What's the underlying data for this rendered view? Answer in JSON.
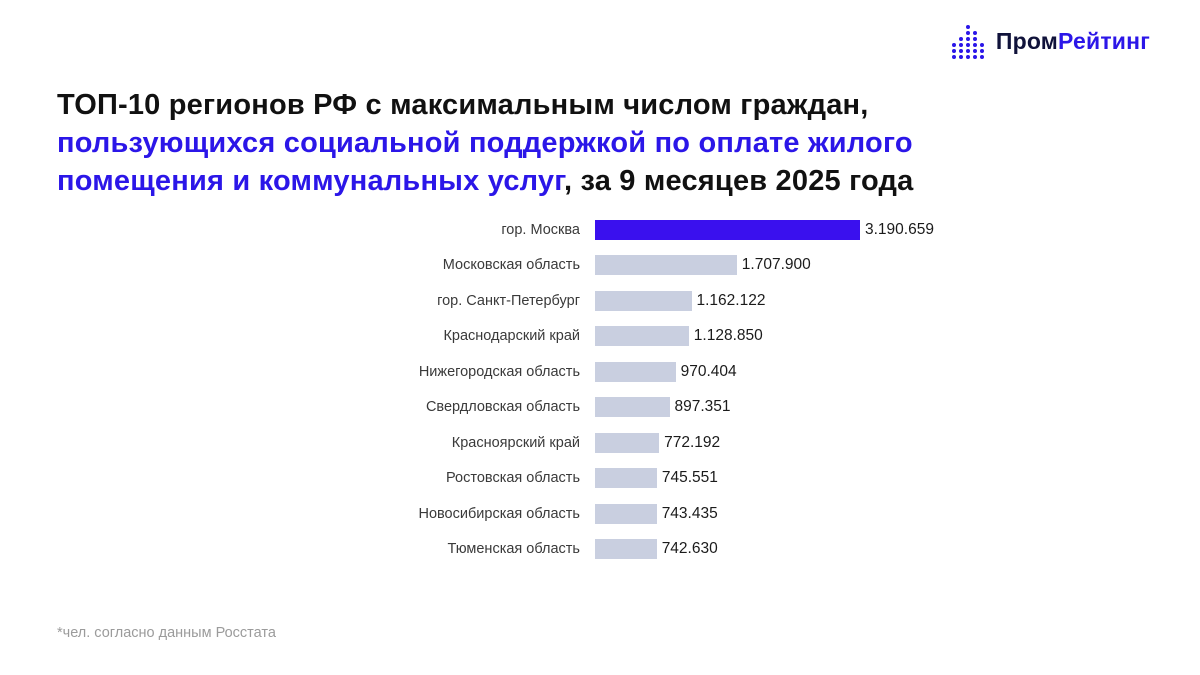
{
  "logo": {
    "part1": "Пром",
    "part2": "Рейтинг"
  },
  "title": {
    "line1_black": "ТОП-10 регионов РФ с максимальным числом граждан,",
    "line2_blue": "пользующихся социальной поддержкой по оплате жилого",
    "line3_blue": "помещения и коммунальных услуг",
    "line3_black": ", за 9 месяцев 2025 года"
  },
  "footnote": "*чел. согласно данным Росстата",
  "colors": {
    "accent": "#2b16e8",
    "bar_highlight": "#3a10ee",
    "bar_default": "#c9cfe0",
    "logo_dark": "#10123a"
  },
  "chart_data": {
    "type": "bar",
    "orientation": "horizontal",
    "title": "ТОП-10 регионов РФ с максимальным числом граждан, пользующихся социальной поддержкой по оплате жилого помещения и коммунальных услуг, за 9 месяцев 2025 года",
    "unit": "чел.",
    "source": "*чел. согласно данным Росстата",
    "legend": "none",
    "grid": false,
    "xlim": [
      0,
      3400000
    ],
    "categories": [
      "гор. Москва",
      "Московская область",
      "гор. Санкт-Петербург",
      "Краснодарский край",
      "Нижегородская область",
      "Свердловская область",
      "Красноярский край",
      "Ростовская область",
      "Новосибирская область",
      "Тюменская область"
    ],
    "values": [
      3190659,
      1707900,
      1162122,
      1128850,
      970404,
      897351,
      772192,
      745551,
      743435,
      742630
    ],
    "value_labels": [
      "3.190.659",
      "1.707.900",
      "1.162.122",
      "1.128.850",
      "970.404",
      "897.351",
      "772.192",
      "745.551",
      "743.435",
      "742.630"
    ],
    "highlighted_index": 0
  }
}
